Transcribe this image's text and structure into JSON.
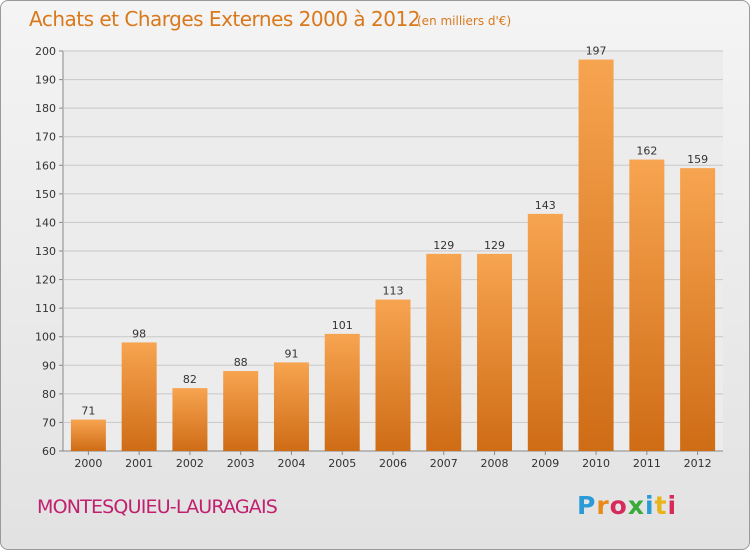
{
  "header": {
    "title": "Achats et Charges Externes 2000 à 2012",
    "subtitle": "(en milliers d'€)"
  },
  "footer": {
    "commune": "MONTESQUIEU-LAURAGAIS",
    "logo_text": "Proxiti"
  },
  "chart_data": {
    "type": "bar",
    "title": "Achats et Charges Externes 2000 à 2012",
    "subtitle": "(en milliers d'€)",
    "categories": [
      "2000",
      "2001",
      "2002",
      "2003",
      "2004",
      "2005",
      "2006",
      "2007",
      "2008",
      "2009",
      "2010",
      "2011",
      "2012"
    ],
    "values": [
      71,
      98,
      82,
      88,
      91,
      101,
      113,
      129,
      129,
      143,
      197,
      162,
      159
    ],
    "xlabel": "",
    "ylabel": "",
    "ylim": [
      60,
      200
    ],
    "yticks": [
      60,
      70,
      80,
      90,
      100,
      110,
      120,
      130,
      140,
      150,
      160,
      170,
      180,
      190,
      200
    ],
    "grid": true,
    "bar_color": "#f0943a"
  }
}
